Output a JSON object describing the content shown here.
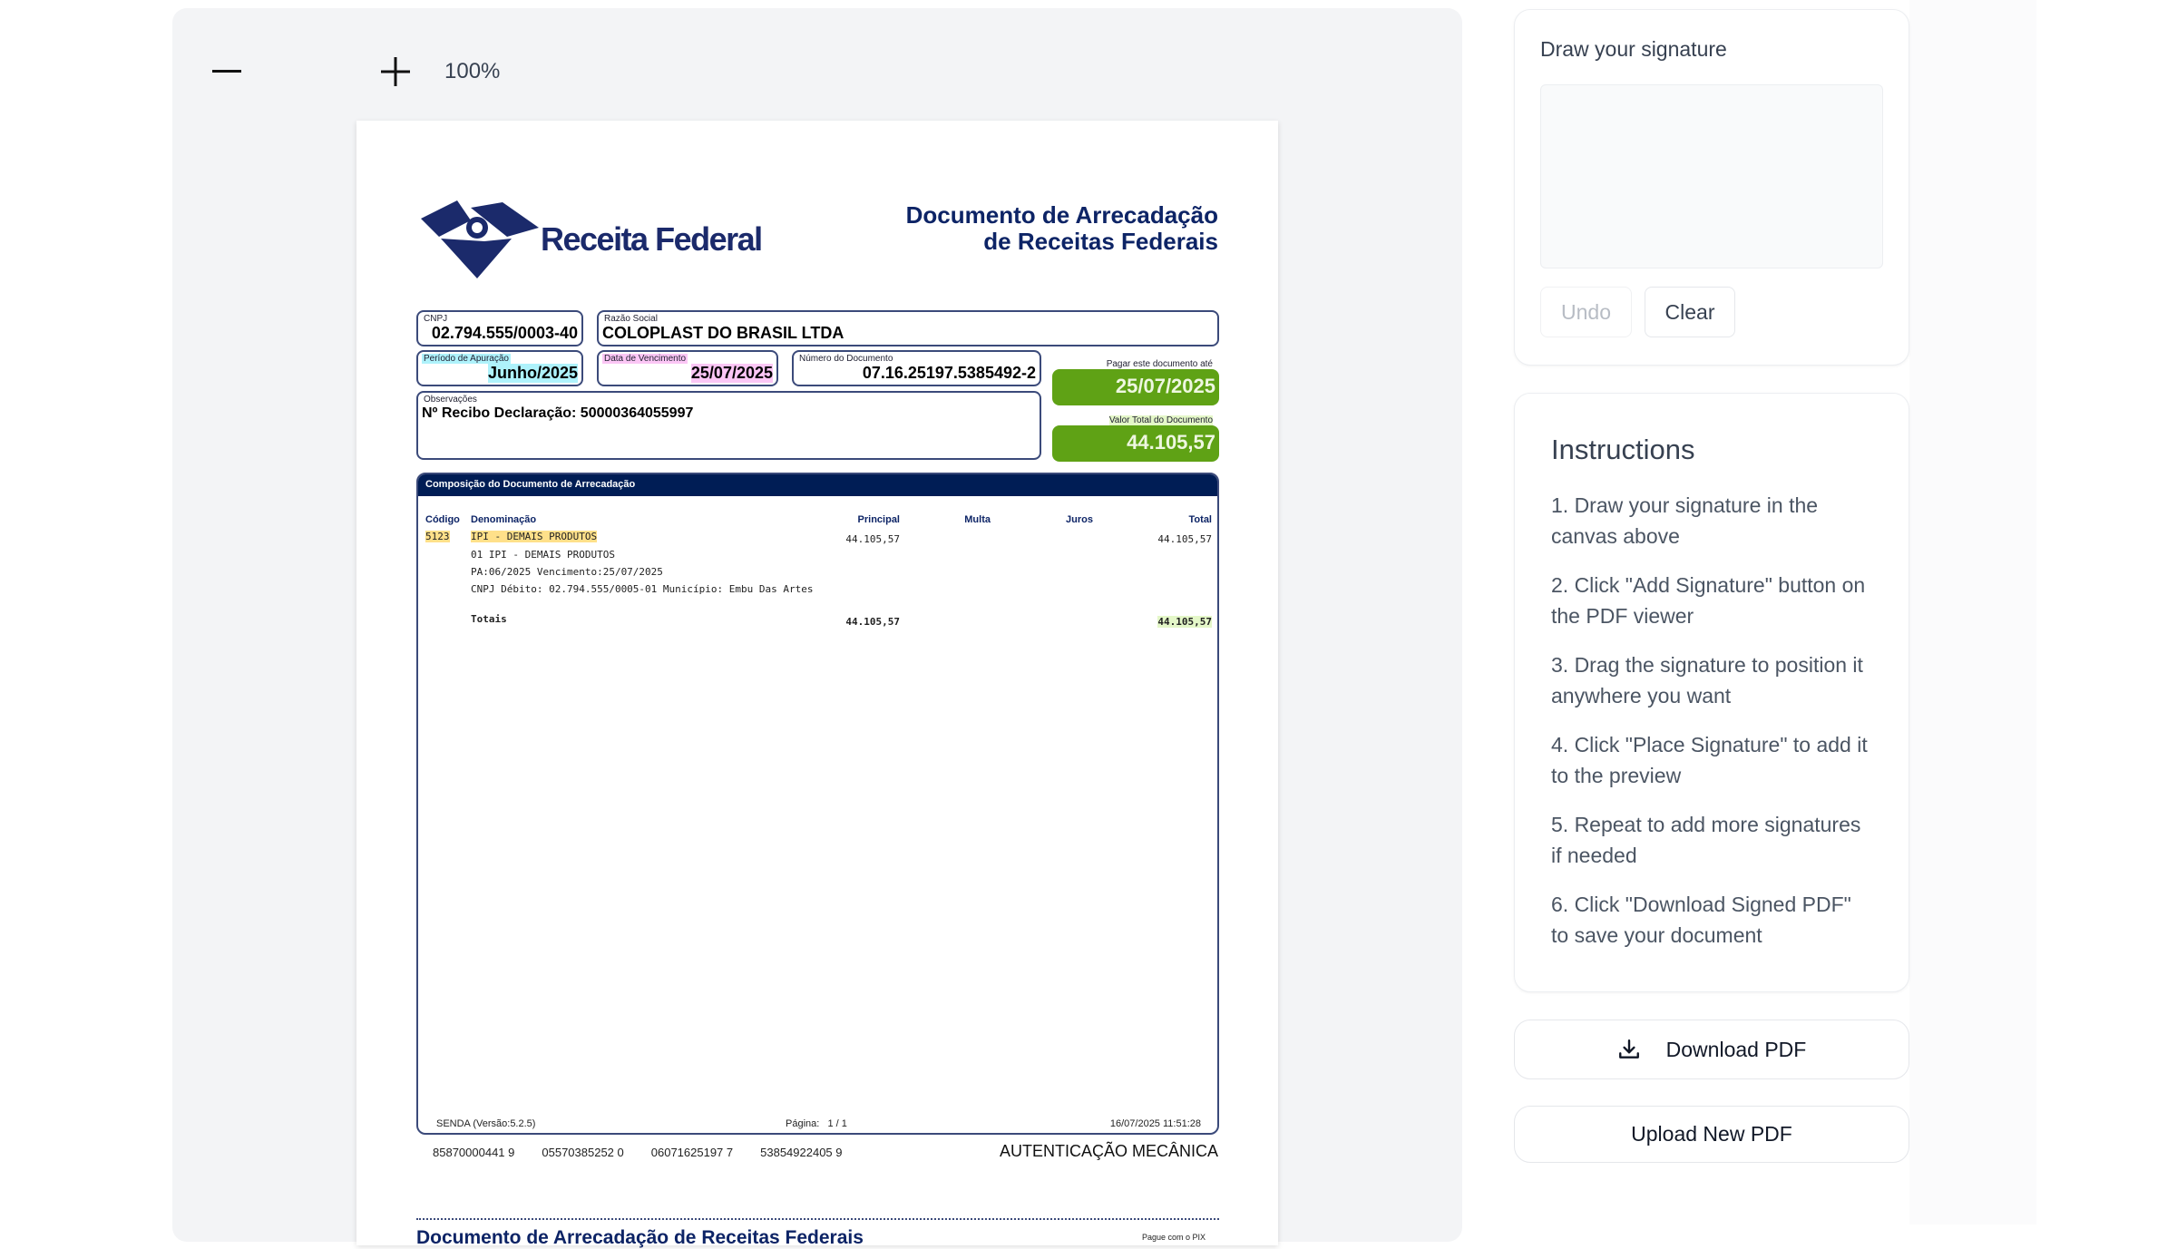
{
  "viewer": {
    "zoom_level": "100%"
  },
  "doc": {
    "brand": "Receita Federal",
    "title_line1": "Documento de Arrecadação",
    "title_line2": "de Receitas Federais",
    "cnpj": {
      "label": "CNPJ",
      "value": "02.794.555/0003-40"
    },
    "razao": {
      "label": "Razão Social",
      "value": "COLOPLAST DO BRASIL LTDA"
    },
    "periodo": {
      "label": "Período de Apuração",
      "value": "Junho/2025"
    },
    "vencimento": {
      "label": "Data de Vencimento",
      "value": "25/07/2025"
    },
    "numero": {
      "label": "Número do Documento",
      "value": "07.16.25197.5385492-2"
    },
    "pagar": {
      "label": "Pagar este documento até",
      "value": "25/07/2025"
    },
    "observacoes": {
      "label": "Observações",
      "value": "Nº Recibo Declaração: 50000364055997"
    },
    "valor_total": {
      "label": "Valor Total do Documento",
      "value": "44.105,57"
    },
    "composicao": {
      "title": "Composição do Documento de Arrecadação",
      "headers": {
        "codigo": "Código",
        "denominacao": "Denominação",
        "principal": "Principal",
        "multa": "Multa",
        "juros": "Juros",
        "total": "Total"
      },
      "row": {
        "codigo": "5123",
        "denominacao": "IPI - DEMAIS PRODUTOS",
        "principal": "44.105,57",
        "total": "44.105,57",
        "details": [
          "01 IPI - DEMAIS PRODUTOS",
          "PA:06/2025 Vencimento:25/07/2025",
          "CNPJ Débito: 02.794.555/0005-01 Município: Embu Das Artes"
        ]
      },
      "totais": {
        "label": "Totais",
        "principal": "44.105,57",
        "total": "44.105,57"
      },
      "footer": {
        "version": "SENDA (Versão:5.2.5)",
        "page": "Página:   1 / 1",
        "timestamp": "16/07/2025 11:51:28"
      }
    },
    "barcode": [
      "85870000441 9",
      "05570385252 0",
      "06071625197 7",
      "53854922405 9"
    ],
    "autenticacao": "AUTENTICAÇÃO MECÂNICA",
    "second_title": "Documento de Arrecadação de Receitas Federais",
    "pix": "Pague com o PIX"
  },
  "signature": {
    "title": "Draw your signature",
    "undo": "Undo",
    "clear": "Clear"
  },
  "instructions": {
    "title": "Instructions",
    "items": [
      "1. Draw your signature in the canvas above",
      "2. Click \"Add Signature\" button on the PDF viewer",
      "3. Drag the signature to position it anywhere you want",
      "4. Click \"Place Signature\" to add it to the preview",
      "5. Repeat to add more signatures if needed",
      "6. Click \"Download Signed PDF\" to save your document"
    ]
  },
  "actions": {
    "download": "Download PDF",
    "upload": "Upload New PDF"
  },
  "colors": {
    "navy": "#0d2466",
    "green": "#5fa215",
    "header_bar": "#001d55"
  }
}
